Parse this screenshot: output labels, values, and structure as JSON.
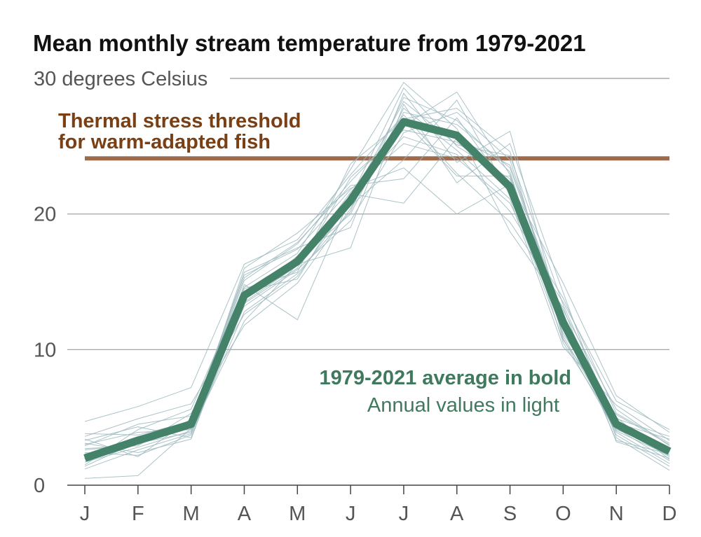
{
  "chart_data": {
    "type": "line",
    "title": "Mean monthly stream temperature from 1979-2021",
    "ylabel": "",
    "xlabel": "",
    "ytick_labels": [
      {
        "value": 0,
        "label": "0"
      },
      {
        "value": 10,
        "label": "10"
      },
      {
        "value": 20,
        "label": "20"
      },
      {
        "value": 30,
        "label": "30 degrees Celsius"
      }
    ],
    "categories": [
      "J",
      "F",
      "M",
      "A",
      "M",
      "J",
      "J",
      "A",
      "S",
      "O",
      "N",
      "D"
    ],
    "ylim": [
      0,
      30
    ],
    "grid": true,
    "threshold": {
      "value": 24.1,
      "label_line1": "Thermal stress threshold",
      "label_line2": "for warm-adapted fish",
      "color": "#9C6B4E",
      "text_color": "#7A3F12"
    },
    "annotation": {
      "bold_text": "1979-2021 average in bold",
      "light_text": "Annual values in light",
      "color": "#3F7A5E"
    },
    "series": [
      {
        "role": "average",
        "values": [
          2.0,
          3.3,
          4.5,
          14.0,
          16.5,
          21.0,
          26.8,
          25.8,
          22.0,
          12.0,
          4.5,
          2.5
        ],
        "color": "#45826A"
      }
    ],
    "annual_series": [
      {
        "values": [
          1.2,
          2.6,
          3.8,
          12.8,
          15.6,
          20.2,
          28.6,
          26.9,
          23.1,
          11.0,
          4.2,
          1.8
        ]
      },
      {
        "values": [
          3.4,
          2.1,
          4.9,
          15.5,
          17.4,
          21.8,
          25.2,
          24.1,
          20.8,
          12.9,
          5.6,
          2.9
        ]
      },
      {
        "values": [
          0.5,
          0.7,
          4.2,
          13.2,
          15.9,
          19.5,
          26.0,
          27.5,
          24.0,
          11.9,
          3.7,
          1.4
        ]
      },
      {
        "values": [
          4.7,
          5.8,
          7.2,
          16.3,
          18.1,
          22.9,
          27.3,
          23.0,
          19.4,
          13.5,
          6.2,
          4.1
        ]
      },
      {
        "values": [
          2.3,
          3.1,
          3.9,
          14.8,
          12.2,
          21.2,
          29.3,
          25.0,
          22.6,
          12.3,
          4.0,
          2.2
        ]
      },
      {
        "values": [
          2.9,
          4.5,
          5.1,
          13.7,
          16.9,
          20.6,
          24.0,
          28.4,
          21.4,
          10.7,
          5.2,
          3.0
        ]
      },
      {
        "values": [
          1.7,
          2.8,
          4.0,
          12.1,
          16.3,
          17.5,
          28.1,
          22.3,
          25.2,
          14.2,
          3.5,
          1.1
        ]
      },
      {
        "values": [
          3.8,
          3.7,
          4.7,
          15.1,
          17.8,
          22.4,
          26.5,
          29.0,
          22.9,
          11.5,
          4.9,
          3.6
        ]
      },
      {
        "values": [
          2.1,
          3.5,
          4.4,
          14.3,
          15.2,
          21.5,
          20.8,
          25.6,
          23.6,
          12.6,
          4.4,
          2.4
        ]
      },
      {
        "values": [
          3.1,
          2.4,
          3.4,
          13.9,
          16.6,
          20.0,
          27.8,
          24.7,
          21.1,
          10.2,
          5.9,
          3.3
        ]
      },
      {
        "values": [
          1.5,
          4.1,
          5.6,
          14.6,
          17.1,
          23.3,
          29.7,
          26.3,
          18.7,
          13.1,
          3.2,
          2.0
        ]
      },
      {
        "values": [
          2.6,
          3.0,
          4.3,
          16.0,
          18.6,
          21.9,
          23.4,
          20.0,
          22.2,
          12.1,
          4.7,
          2.7
        ]
      },
      {
        "values": [
          3.6,
          4.9,
          6.0,
          12.6,
          15.4,
          20.9,
          27.0,
          27.8,
          24.6,
          10.8,
          3.9,
          1.6
        ]
      },
      {
        "values": [
          2.4,
          2.2,
          3.7,
          13.4,
          16.0,
          22.7,
          26.2,
          25.3,
          22.3,
          14.9,
          6.6,
          3.9
        ]
      },
      {
        "values": [
          1.9,
          3.4,
          4.6,
          15.7,
          17.5,
          19.0,
          28.9,
          23.8,
          26.1,
          11.7,
          4.1,
          2.6
        ]
      },
      {
        "values": [
          3.0,
          3.9,
          4.1,
          14.1,
          16.4,
          21.6,
          25.7,
          24.4,
          20.2,
          13.8,
          5.3,
          3.1
        ]
      },
      {
        "values": [
          2.7,
          2.9,
          5.3,
          11.8,
          14.9,
          20.4,
          27.5,
          26.6,
          23.4,
          12.4,
          3.3,
          2.3
        ]
      },
      {
        "values": [
          1.4,
          3.2,
          4.8,
          15.3,
          17.9,
          22.1,
          22.6,
          27.1,
          21.7,
          11.2,
          5.0,
          1.9
        ]
      },
      {
        "values": [
          3.3,
          4.3,
          3.5,
          13.5,
          16.2,
          21.0,
          28.3,
          25.1,
          24.3,
          13.3,
          4.6,
          3.4
        ]
      },
      {
        "values": [
          2.2,
          3.6,
          4.5,
          14.5,
          15.7,
          23.7,
          26.9,
          22.8,
          22.8,
          10.5,
          4.3,
          2.1
        ]
      }
    ],
    "annual_color": "#9CB8BE"
  }
}
